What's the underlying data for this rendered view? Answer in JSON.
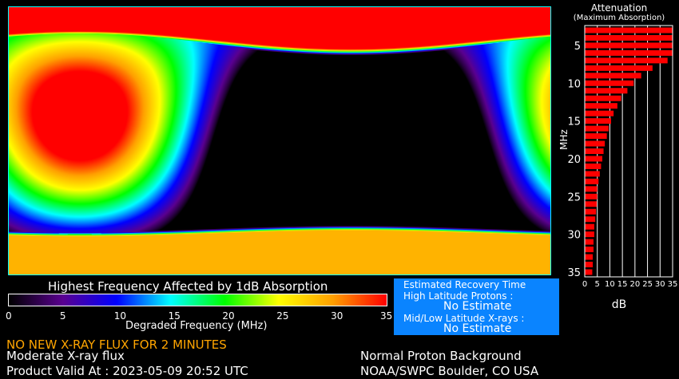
{
  "map": {
    "title": "Highest Frequency Affected by 1dB Absorption",
    "colorbar_ticks": [
      "0",
      "5",
      "10",
      "15",
      "20",
      "25",
      "30",
      "35"
    ],
    "colorbar_label": "Degraded Frequency (MHz)",
    "colorbar_colors": [
      "#000000",
      "#5a0090",
      "#0000ff",
      "#00ffff",
      "#00ff00",
      "#ffff00",
      "#ffa000",
      "#ff0000"
    ]
  },
  "recovery": {
    "title": "Estimated Recovery Time",
    "protons_label": "High Latitude Protons :",
    "protons_value": "No Estimate",
    "xrays_label": "Mid/Low Latitude X-rays :",
    "xrays_value": "No Estimate",
    "bg_color": "#0a84ff"
  },
  "status": {
    "warning": "NO NEW X-RAY FLUX FOR 2 MINUTES",
    "warning_color": "#ffa500",
    "xray": "Moderate X-ray flux",
    "valid": "Product Valid At : 2023-05-09 20:52 UTC",
    "proton": "Normal Proton Background",
    "source": "NOAA/SWPC Boulder, CO USA"
  },
  "chart_data": {
    "type": "bar",
    "orientation": "horizontal",
    "title": "Attenuation",
    "subtitle": "(Maximum Absorption)",
    "xlabel": "dB",
    "ylabel": "MHz",
    "xlim": [
      0,
      35
    ],
    "ylim": [
      35,
      3
    ],
    "xticks": [
      "0",
      "5",
      "10",
      "15",
      "20",
      "25",
      "30",
      "35"
    ],
    "yticks": [
      "5",
      "10",
      "15",
      "20",
      "25",
      "30",
      "35"
    ],
    "categories": [
      3,
      4,
      5,
      6,
      7,
      8,
      9,
      10,
      11,
      12,
      13,
      14,
      15,
      16,
      17,
      18,
      19,
      20,
      21,
      22,
      23,
      24,
      25,
      26,
      27,
      28,
      29,
      30,
      31,
      32,
      33,
      34,
      35
    ],
    "values": [
      35,
      35,
      35,
      35,
      33,
      27,
      22.5,
      19.5,
      17,
      14.5,
      13,
      11.5,
      10.5,
      9.5,
      8.8,
      8,
      7.5,
      7,
      6.5,
      6,
      5.5,
      5,
      5,
      4.8,
      4.5,
      4.2,
      3.8,
      3.8,
      3.5,
      3.5,
      3.2,
      3.2,
      3
    ],
    "bar_color": "#ff0000",
    "grid": true
  }
}
